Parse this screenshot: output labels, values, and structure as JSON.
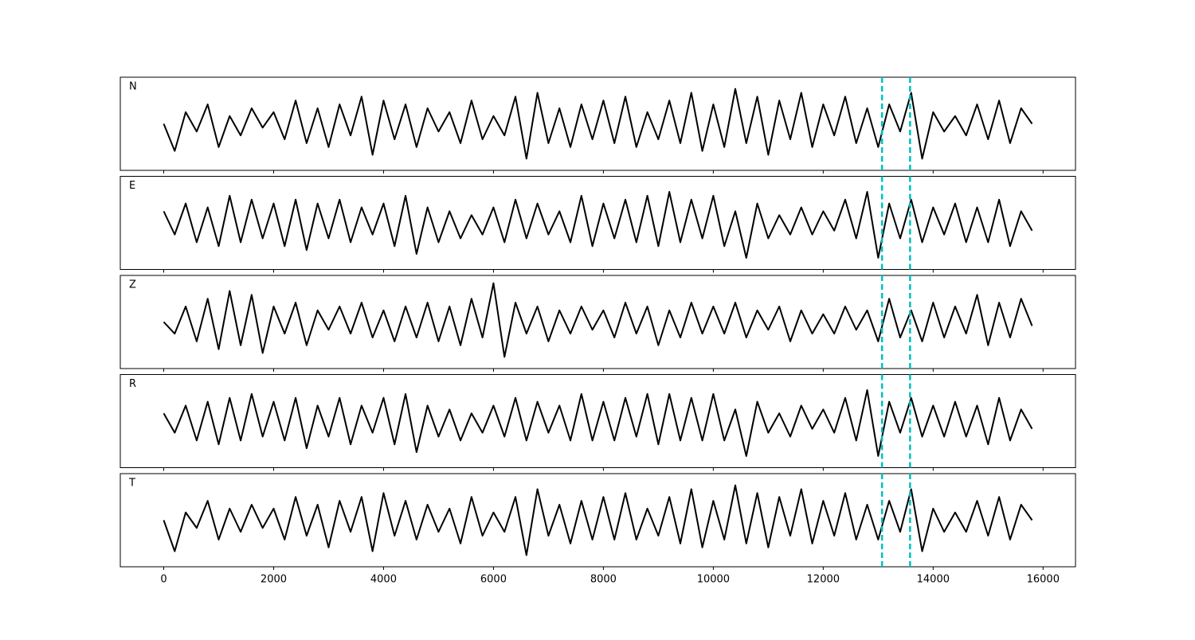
{
  "chart_data": {
    "type": "line",
    "layout": "stacked",
    "x": [
      0,
      200,
      400,
      600,
      800,
      1000,
      1200,
      1400,
      1600,
      1800,
      2000,
      2200,
      2400,
      2600,
      2800,
      3000,
      3200,
      3400,
      3600,
      3800,
      4000,
      4200,
      4400,
      4600,
      4800,
      5000,
      5200,
      5400,
      5600,
      5800,
      6000,
      6200,
      6400,
      6600,
      6800,
      7000,
      7200,
      7400,
      7600,
      7800,
      8000,
      8200,
      8400,
      8600,
      8800,
      9000,
      9200,
      9400,
      9600,
      9800,
      10000,
      10200,
      10400,
      10600,
      10800,
      11000,
      11200,
      11400,
      11600,
      11800,
      12000,
      12200,
      12400,
      12600,
      12800,
      13000,
      13200,
      13400,
      13600,
      13800,
      14000,
      14200,
      14400,
      14600,
      14800,
      15000,
      15200,
      15400,
      15600,
      15800
    ],
    "series": [
      {
        "name": "N",
        "color": "#000000",
        "values": [
          0.0,
          -0.7,
          0.3,
          -0.2,
          0.5,
          -0.6,
          0.2,
          -0.3,
          0.4,
          -0.1,
          0.3,
          -0.4,
          0.6,
          -0.5,
          0.4,
          -0.6,
          0.5,
          -0.3,
          0.7,
          -0.8,
          0.6,
          -0.4,
          0.5,
          -0.6,
          0.4,
          -0.2,
          0.3,
          -0.5,
          0.6,
          -0.4,
          0.2,
          -0.3,
          0.7,
          -0.9,
          0.8,
          -0.5,
          0.4,
          -0.6,
          0.5,
          -0.4,
          0.6,
          -0.5,
          0.7,
          -0.6,
          0.3,
          -0.4,
          0.6,
          -0.5,
          0.8,
          -0.7,
          0.5,
          -0.6,
          0.9,
          -0.5,
          0.7,
          -0.8,
          0.6,
          -0.4,
          0.8,
          -0.6,
          0.5,
          -0.3,
          0.7,
          -0.5,
          0.4,
          -0.6,
          0.5,
          -0.2,
          0.8,
          -0.9,
          0.3,
          -0.2,
          0.2,
          -0.3,
          0.5,
          -0.4,
          0.6,
          -0.5,
          0.4,
          0.0
        ]
      },
      {
        "name": "E",
        "color": "#000000",
        "values": [
          0.3,
          -0.3,
          0.5,
          -0.5,
          0.4,
          -0.6,
          0.7,
          -0.5,
          0.6,
          -0.4,
          0.5,
          -0.6,
          0.6,
          -0.7,
          0.5,
          -0.4,
          0.6,
          -0.5,
          0.4,
          -0.3,
          0.5,
          -0.6,
          0.7,
          -0.8,
          0.4,
          -0.5,
          0.3,
          -0.4,
          0.2,
          -0.3,
          0.4,
          -0.5,
          0.6,
          -0.4,
          0.5,
          -0.3,
          0.3,
          -0.5,
          0.7,
          -0.6,
          0.5,
          -0.4,
          0.6,
          -0.5,
          0.7,
          -0.6,
          0.8,
          -0.5,
          0.6,
          -0.4,
          0.7,
          -0.6,
          0.3,
          -0.9,
          0.5,
          -0.4,
          0.2,
          -0.3,
          0.4,
          -0.3,
          0.3,
          -0.2,
          0.6,
          -0.4,
          0.8,
          -0.9,
          0.5,
          -0.4,
          0.6,
          -0.5,
          0.4,
          -0.3,
          0.5,
          -0.5,
          0.4,
          -0.5,
          0.6,
          -0.6,
          0.3,
          -0.2
        ]
      },
      {
        "name": "Z",
        "color": "#000000",
        "values": [
          0.0,
          -0.3,
          0.4,
          -0.5,
          0.6,
          -0.7,
          0.8,
          -0.6,
          0.7,
          -0.8,
          0.4,
          -0.3,
          0.5,
          -0.6,
          0.3,
          -0.2,
          0.4,
          -0.3,
          0.5,
          -0.4,
          0.3,
          -0.5,
          0.4,
          -0.4,
          0.5,
          -0.5,
          0.4,
          -0.6,
          0.6,
          -0.4,
          1.0,
          -0.9,
          0.5,
          -0.3,
          0.4,
          -0.5,
          0.3,
          -0.3,
          0.4,
          -0.2,
          0.3,
          -0.4,
          0.5,
          -0.3,
          0.4,
          -0.6,
          0.3,
          -0.4,
          0.5,
          -0.3,
          0.4,
          -0.3,
          0.5,
          -0.4,
          0.3,
          -0.2,
          0.4,
          -0.5,
          0.3,
          -0.3,
          0.2,
          -0.3,
          0.4,
          -0.2,
          0.3,
          -0.5,
          0.6,
          -0.4,
          0.3,
          -0.5,
          0.5,
          -0.4,
          0.4,
          -0.3,
          0.7,
          -0.6,
          0.5,
          -0.4,
          0.6,
          -0.1
        ]
      },
      {
        "name": "R",
        "color": "#000000",
        "values": [
          0.2,
          -0.3,
          0.4,
          -0.5,
          0.5,
          -0.6,
          0.6,
          -0.5,
          0.7,
          -0.4,
          0.5,
          -0.5,
          0.6,
          -0.7,
          0.4,
          -0.4,
          0.6,
          -0.6,
          0.4,
          -0.3,
          0.6,
          -0.6,
          0.7,
          -0.8,
          0.4,
          -0.4,
          0.3,
          -0.5,
          0.2,
          -0.3,
          0.4,
          -0.4,
          0.6,
          -0.5,
          0.5,
          -0.3,
          0.4,
          -0.5,
          0.7,
          -0.5,
          0.5,
          -0.5,
          0.6,
          -0.4,
          0.7,
          -0.6,
          0.7,
          -0.5,
          0.6,
          -0.5,
          0.7,
          -0.5,
          0.3,
          -0.9,
          0.5,
          -0.3,
          0.2,
          -0.4,
          0.4,
          -0.2,
          0.3,
          -0.3,
          0.6,
          -0.5,
          0.8,
          -0.9,
          0.5,
          -0.3,
          0.6,
          -0.4,
          0.4,
          -0.4,
          0.5,
          -0.4,
          0.4,
          -0.6,
          0.6,
          -0.5,
          0.3,
          -0.2
        ]
      },
      {
        "name": "T",
        "color": "#000000",
        "values": [
          0.0,
          -0.8,
          0.2,
          -0.2,
          0.5,
          -0.5,
          0.3,
          -0.3,
          0.4,
          -0.2,
          0.3,
          -0.5,
          0.6,
          -0.4,
          0.4,
          -0.7,
          0.5,
          -0.3,
          0.6,
          -0.8,
          0.7,
          -0.4,
          0.5,
          -0.5,
          0.4,
          -0.3,
          0.3,
          -0.6,
          0.6,
          -0.4,
          0.2,
          -0.3,
          0.6,
          -0.9,
          0.8,
          -0.4,
          0.4,
          -0.6,
          0.5,
          -0.5,
          0.6,
          -0.5,
          0.7,
          -0.5,
          0.3,
          -0.4,
          0.6,
          -0.6,
          0.8,
          -0.7,
          0.5,
          -0.5,
          0.9,
          -0.6,
          0.7,
          -0.7,
          0.6,
          -0.4,
          0.8,
          -0.6,
          0.5,
          -0.4,
          0.7,
          -0.5,
          0.4,
          -0.5,
          0.5,
          -0.3,
          0.8,
          -0.8,
          0.3,
          -0.3,
          0.2,
          -0.3,
          0.5,
          -0.4,
          0.6,
          -0.5,
          0.4,
          0.0
        ]
      }
    ],
    "vlines": [
      13070,
      13580
    ],
    "vline_color": "#00bfbf",
    "xlim": [
      -790,
      16590
    ],
    "xticks": [
      0,
      2000,
      4000,
      6000,
      8000,
      10000,
      12000,
      14000,
      16000
    ],
    "ylim": [
      -1.2,
      1.2
    ]
  }
}
